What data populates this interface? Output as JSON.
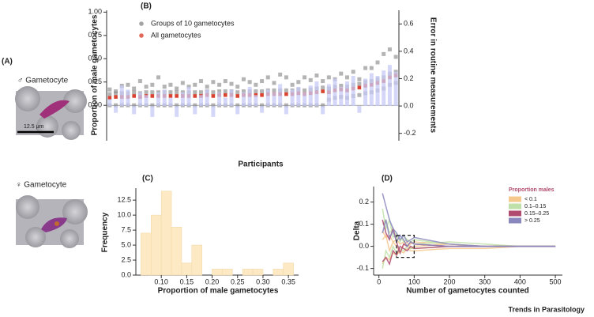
{
  "panel_a": {
    "label": "(A)",
    "male_label": "♂ Gametocyte",
    "scale_bar": "12.5 μm",
    "female_label": "♀ Gametocyte"
  },
  "footer": "Trends in Parasitology",
  "chart_data": [
    {
      "type": "scatter",
      "panel_label": "(B)",
      "y_label": "Proportion of male gametocytes",
      "y2_label": "Error in routine measurements",
      "x_label": "Participants",
      "ylim": [
        -0.38,
        1.02
      ],
      "yticks": [
        {
          "value": 0,
          "label": "0.00"
        },
        {
          "value": 0.25,
          "label": "0.25"
        },
        {
          "value": 0.5,
          "label": "0.50"
        },
        {
          "value": 0.75,
          "label": "0.75"
        },
        {
          "value": 1,
          "label": "1.00"
        }
      ],
      "y2lim": [
        -0.254,
        0.7
      ],
      "y2ticks": [
        {
          "value": -0.2,
          "label": "-0.2"
        },
        {
          "value": 0,
          "label": "0.0"
        },
        {
          "value": 0.2,
          "label": "0.2"
        },
        {
          "value": 0.4,
          "label": "0.4"
        },
        {
          "value": 0.6,
          "label": "0.6"
        }
      ],
      "series": [
        {
          "name": "Groups of 10 gametocytes",
          "color": "#8c8c8c",
          "values": [
            [
              0,
              0.12,
              0.17
            ],
            [
              0,
              0.13,
              0.15
            ],
            [
              0,
              0.13,
              0.21
            ],
            [
              0,
              0.13,
              0.22
            ],
            [
              0,
              0.14,
              0.18
            ],
            [
              0,
              0.13,
              0.26
            ],
            [
              0,
              0.14,
              0.2
            ],
            [
              0,
              0.14,
              0.22
            ],
            [
              0,
              0.14,
              0.3
            ],
            [
              0,
              0.14,
              0.2
            ],
            [
              0,
              0.14,
              0.22
            ],
            [
              0,
              0.14,
              0.18
            ],
            [
              0,
              0.14,
              0.24
            ],
            [
              0,
              0.14,
              0.2
            ],
            [
              0,
              0.14,
              0.22
            ],
            [
              0,
              0.14,
              0.26
            ],
            [
              0,
              0.15,
              0.2
            ],
            [
              0,
              0.14,
              0.25
            ],
            [
              0,
              0.15,
              0.22
            ],
            [
              0,
              0.15,
              0.26
            ],
            [
              0,
              0.15,
              0.23
            ],
            [
              0,
              0.14,
              0.2
            ],
            [
              0,
              0.15,
              0.28
            ],
            [
              0,
              0.15,
              0.25
            ],
            [
              0,
              0.15,
              0.22
            ],
            [
              0,
              0.15,
              0.26
            ],
            [
              0,
              0.16,
              0.3
            ],
            [
              0,
              0.16,
              0.24
            ],
            [
              0,
              0.16,
              0.33
            ],
            [
              0,
              0.16,
              0.3
            ],
            [
              0,
              0.16,
              0.22
            ],
            [
              0,
              0.17,
              0.25
            ],
            [
              0,
              0.16,
              0.3
            ],
            [
              0,
              0.17,
              0.27
            ],
            [
              0,
              0.18,
              0.32
            ],
            [
              0,
              0.19,
              0.26
            ],
            [
              0.06,
              0.18,
              0.3
            ],
            [
              0.08,
              0.2,
              0.28
            ],
            [
              0.09,
              0.21,
              0.34
            ],
            [
              0.08,
              0.2,
              0.3
            ],
            [
              0.1,
              0.22,
              0.36
            ],
            [
              0.11,
              0.23,
              0.28
            ],
            [
              0.13,
              0.25,
              0.4
            ],
            [
              0.14,
              0.26,
              0.4
            ],
            [
              0.16,
              0.28,
              0.46
            ],
            [
              0.18,
              0.3,
              0.55
            ],
            [
              0.22,
              0.34,
              0.6
            ],
            [
              0.24,
              0.36,
              0.52
            ]
          ]
        },
        {
          "name": "All gametocytes",
          "color": "#d9432f",
          "values": [
            0.08,
            0.09,
            0.09,
            0.09,
            0.1,
            0.09,
            0.1,
            0.1,
            0.1,
            0.1,
            0.1,
            0.1,
            0.1,
            0.1,
            0.1,
            0.1,
            0.11,
            0.1,
            0.11,
            0.11,
            0.11,
            0.1,
            0.11,
            0.11,
            0.11,
            0.11,
            0.12,
            0.12,
            0.12,
            0.12,
            0.12,
            0.13,
            0.12,
            0.13,
            0.14,
            0.15,
            0.14,
            0.16,
            0.17,
            0.16,
            0.18,
            0.19,
            0.21,
            0.22,
            0.24,
            0.26,
            0.3,
            0.32
          ]
        },
        {
          "axis": "y2",
          "color": "#c5c9f6",
          "values": [
            0.05,
            -0.05,
            0.15,
            0.12,
            -0.06,
            0.1,
            0.08,
            -0.08,
            0.1,
            0.12,
            0.06,
            -0.08,
            0.1,
            0.14,
            -0.06,
            0.08,
            0.12,
            -0.08,
            0.1,
            0.06,
            0.12,
            -0.06,
            0.1,
            0.14,
            0.08,
            -0.05,
            0.12,
            0.1,
            0.16,
            -0.06,
            0.12,
            0.14,
            0.1,
            0.15,
            0.18,
            -0.06,
            0.16,
            0.2,
            0.14,
            0.18,
            0.22,
            -0.05,
            0.2,
            0.24,
            0.22,
            0.26,
            0.3,
            0.25
          ]
        }
      ]
    },
    {
      "type": "histogram",
      "panel_label": "(C)",
      "y_label": "Frequency",
      "x_label": "Proportion of male gametocytes",
      "color": "#fde9c4",
      "bins": [
        0.06,
        0.08,
        0.1,
        0.12,
        0.14,
        0.16,
        0.18,
        0.2,
        0.22,
        0.24,
        0.26,
        0.28,
        0.3,
        0.32,
        0.34,
        0.36
      ],
      "counts": [
        7,
        10,
        14,
        8,
        2,
        5,
        0,
        1,
        1,
        0,
        1,
        1,
        0,
        1,
        2
      ],
      "xlim": [
        0.05,
        0.37
      ],
      "xticks": [
        {
          "value": 0.1,
          "label": "0.10"
        },
        {
          "value": 0.15,
          "label": "0.15"
        },
        {
          "value": 0.2,
          "label": "0.20"
        },
        {
          "value": 0.25,
          "label": "0.25"
        },
        {
          "value": 0.3,
          "label": "0.30"
        },
        {
          "value": 0.35,
          "label": "0.35"
        }
      ],
      "ylim": [
        0,
        14.5
      ],
      "yticks": [
        {
          "value": 0,
          "label": "0.0"
        },
        2.5,
        {
          "value": 5,
          "label": "5.0"
        },
        7.5,
        {
          "value": 10,
          "label": "10.0"
        },
        12.5
      ]
    },
    {
      "type": "line",
      "panel_label": "(D)",
      "y_label": "Delta",
      "x_label": "Number of gametocytes counted",
      "legend_title": "Proportion males",
      "x": [
        10,
        20,
        30,
        40,
        50,
        60,
        70,
        80,
        90,
        100,
        200,
        300,
        400,
        500
      ],
      "xlim": [
        -15,
        520
      ],
      "xticks": [
        0,
        100,
        200,
        300,
        400,
        500
      ],
      "ylim": [
        -0.13,
        0.27
      ],
      "yticks": [
        {
          "value": -0.1,
          "label": "-0.1"
        },
        {
          "value": 0,
          "label": "0.0"
        },
        0.1,
        0.2
      ],
      "highlight": {
        "xlim": [
          50,
          100
        ],
        "ylim": [
          -0.05,
          0.05
        ]
      },
      "series": [
        {
          "name": "< 0.1",
          "color": "#f5c88e",
          "lines": [
            [
              0.03,
              0.05,
              -0.02,
              0.02,
              0,
              -0.03,
              0.01,
              0.02,
              -0.01,
              0,
              0.01,
              0,
              0,
              0
            ],
            [
              -0.08,
              -0.05,
              -0.06,
              -0.03,
              -0.04,
              -0.02,
              -0.03,
              -0.01,
              -0.02,
              -0.02,
              -0.01,
              -0.01,
              0,
              0
            ],
            [
              0.07,
              0.04,
              0.05,
              0.02,
              0.03,
              0.01,
              0.02,
              0,
              0.01,
              0.02,
              0.01,
              0,
              0,
              0
            ]
          ]
        },
        {
          "name": "0.1–0.15",
          "color": "#bfe0a8",
          "lines": [
            [
              0.17,
              0.08,
              0.12,
              0.04,
              0.06,
              0.02,
              0.05,
              0.03,
              0.02,
              0.03,
              0.01,
              0,
              0,
              0
            ],
            [
              -0.1,
              -0.02,
              -0.05,
              0,
              -0.03,
              -0.01,
              -0.02,
              0,
              -0.01,
              -0.01,
              0,
              0,
              0,
              0
            ],
            [
              0.1,
              0.12,
              0.06,
              0.08,
              0.03,
              0.05,
              0.02,
              0.03,
              0.02,
              0.01,
              0.02,
              0.01,
              0,
              0
            ]
          ]
        },
        {
          "name": "0.15–0.25",
          "color": "#b04a6e",
          "lines": [
            [
              0.12,
              0.06,
              0.03,
              0.08,
              0.02,
              -0.03,
              0.01,
              0,
              0.02,
              0.01,
              0,
              0,
              0,
              0
            ],
            [
              -0.07,
              -0.05,
              -0.08,
              -0.02,
              -0.04,
              0,
              -0.01,
              -0.02,
              0,
              -0.01,
              0,
              0,
              0,
              0
            ]
          ]
        },
        {
          "name": "> 0.25",
          "color": "#8a86be",
          "lines": [
            [
              0.24,
              0.18,
              0.12,
              0.08,
              0.06,
              0.03,
              0.05,
              0.02,
              0.03,
              0.04,
              0.01,
              0,
              0,
              0
            ],
            [
              0.06,
              0.12,
              0.04,
              0.07,
              0.02,
              0.05,
              0.03,
              0,
              0.02,
              0.01,
              0,
              0,
              0,
              0
            ]
          ]
        }
      ]
    }
  ]
}
